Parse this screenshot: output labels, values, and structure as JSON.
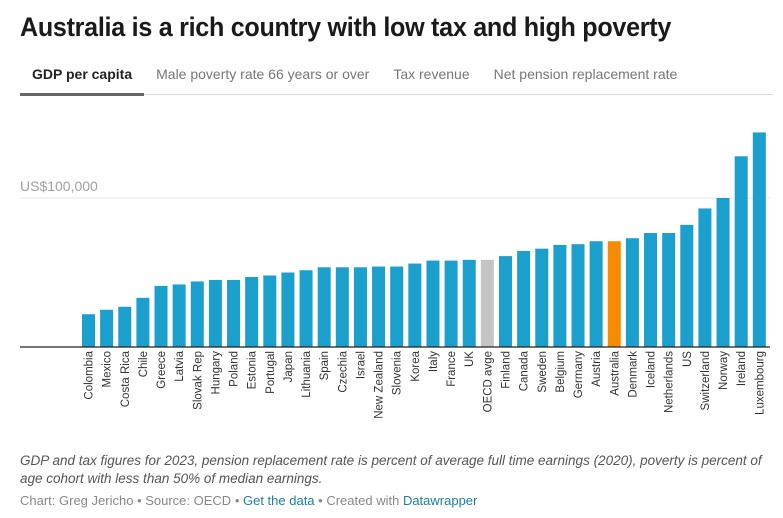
{
  "header": {
    "title": "Australia is a rich country with low tax and high poverty"
  },
  "tabs": [
    {
      "label": "GDP per capita",
      "active": true
    },
    {
      "label": "Male poverty rate 66 years or over",
      "active": false
    },
    {
      "label": "Tax revenue",
      "active": false
    },
    {
      "label": "Net pension replacement rate",
      "active": false
    }
  ],
  "colors": {
    "bar": "#1b9fcc",
    "highlight": "#f58b00",
    "average": "#c4c4c4"
  },
  "chart_data": {
    "type": "bar",
    "title": "Australia is a rich country with low tax and high poverty",
    "xlabel": "",
    "ylabel": "",
    "ylim": [
      0,
      150000
    ],
    "yticks": [
      {
        "value": 100000,
        "label": "US$100,000"
      }
    ],
    "grid": true,
    "categories": [
      "Colombia",
      "Mexico",
      "Costa Rica",
      "Chile",
      "Greece",
      "Latvia",
      "Slovak Rep",
      "Hungary",
      "Poland",
      "Estonia",
      "Portugal",
      "Japan",
      "Lithuania",
      "Spain",
      "Czechia",
      "Israel",
      "New Zealand",
      "Slovenia",
      "Korea",
      "Italy",
      "France",
      "UK",
      "OECD avge",
      "Finland",
      "Canada",
      "Sweden",
      "Belgium",
      "Germany",
      "Austria",
      "Australia",
      "Denmark",
      "Iceland",
      "Netherlands",
      "US",
      "Switzerland",
      "Norway",
      "Ireland",
      "Luxembourg"
    ],
    "values": [
      22000,
      25000,
      27000,
      33000,
      41000,
      42000,
      44000,
      45000,
      45000,
      47000,
      48000,
      50000,
      51500,
      53500,
      53500,
      53500,
      54000,
      54000,
      56000,
      58000,
      58000,
      58500,
      58500,
      61000,
      64500,
      66000,
      68500,
      69000,
      71000,
      71000,
      73000,
      76500,
      76500,
      82000,
      93000,
      100000,
      128000,
      144000
    ],
    "highlight": {
      "Australia": "highlight",
      "OECD avge": "average"
    }
  },
  "footer": {
    "notes": "GDP and tax figures for 2023, pension replacement rate is percent of average full time earnings (2020), poverty is percent of age cohort with less than 50% of median earnings.",
    "chart_by": "Chart: Greg Jericho",
    "sep": " • ",
    "source": "Source: OECD",
    "get_data": "Get the data",
    "created_with": "Created with",
    "tool": "Datawrapper"
  }
}
